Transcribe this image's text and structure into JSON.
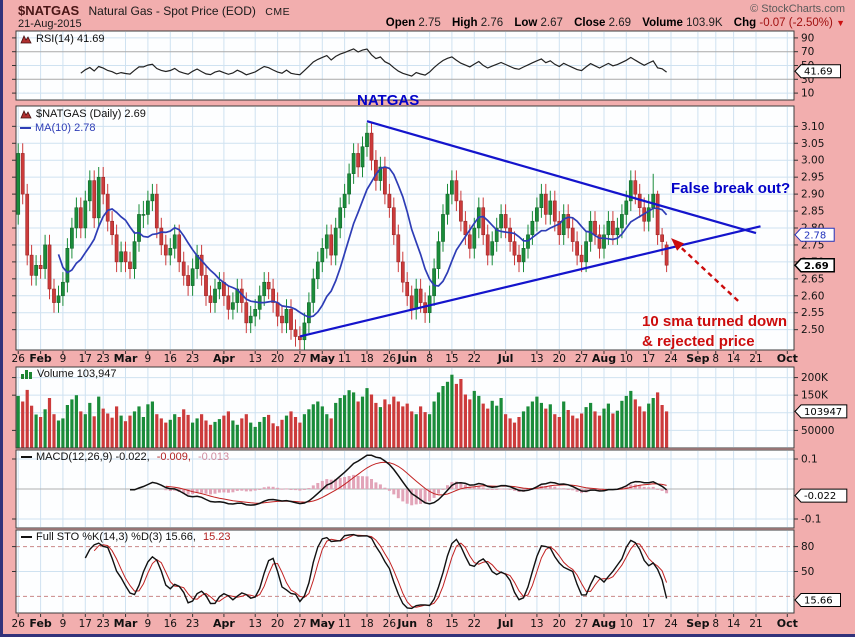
{
  "header": {
    "symbol": "$NATGAS",
    "title": "Natural Gas - Spot Price (EOD)",
    "exchange": "CME",
    "date": "21-Aug-2015",
    "copyright": "© StockCharts.com",
    "quote": {
      "open_label": "Open",
      "open": "2.75",
      "high_label": "High",
      "high": "2.76",
      "low_label": "Low",
      "low": "2.67",
      "close_label": "Close",
      "close": "2.69",
      "volume_label": "Volume",
      "volume": "103.9K",
      "chg_label": "Chg",
      "chg": "-0.07 (-2.50%)",
      "chg_direction_icon": "▼"
    }
  },
  "legends": {
    "rsi": "RSI(14) 41.69",
    "price": "$NATGAS (Daily) 2.69",
    "ma": "MA(10) 2.78",
    "volume": "Volume 103,947",
    "macd_name": "MACD(12,26,9) -0.022,",
    "macd_signal": "-0.009,",
    "macd_hist": "-0.013",
    "sto_name": "Full STO %K(14,3) %D(3) 15.66,",
    "sto_d": "15.23"
  },
  "annotations": {
    "natgas": "NATGAS",
    "false_breakout": "False break out?",
    "sma_note_line1": "10 sma turned down",
    "sma_note_line2": "& rejected price"
  },
  "axis_boxes": {
    "rsi": "41.69",
    "ma": "2.78",
    "close": "2.69",
    "volume": "103947",
    "macd": "-0.022",
    "sto": "15.66"
  },
  "colors": {
    "background_pink": "#F2AEAE",
    "candle_up": "#1A8C3A",
    "candle_down": "#CC3B3B",
    "ma_line": "#2E3DB6",
    "trendline_blue": "#1414CC",
    "annotation_red": "#CC0C0C",
    "grid_blue": "#CFE2F1"
  },
  "chart_data": [
    {
      "id": "price",
      "type": "candlestick",
      "title": "$NATGAS (Daily)",
      "last_close": 2.69,
      "ma_period": 10,
      "ma_last": 2.78,
      "ylim": [
        2.44,
        3.16
      ],
      "ytick_vals": [
        3.1,
        3.05,
        3.0,
        2.95,
        2.9,
        2.85,
        2.8,
        2.75,
        2.7,
        2.65,
        2.6,
        2.55,
        2.5
      ],
      "ytick_labels": [
        "3.10",
        "3.05",
        "3.00",
        "2.95",
        "2.90",
        "2.85",
        "2.80",
        "2.75",
        "2.70",
        "2.65",
        "2.60",
        "2.55",
        "2.50"
      ],
      "x_slots": 174,
      "x_ticks": [
        [
          "26",
          0
        ],
        [
          "Feb",
          5
        ],
        [
          "9",
          10
        ],
        [
          "17",
          15
        ],
        [
          "23",
          19
        ],
        [
          "Mar",
          24
        ],
        [
          "9",
          29
        ],
        [
          "16",
          34
        ],
        [
          "23",
          39
        ],
        [
          "Apr",
          46
        ],
        [
          "13",
          53
        ],
        [
          "20",
          58
        ],
        [
          "27",
          63
        ],
        [
          "May",
          68
        ],
        [
          "11",
          73
        ],
        [
          "18",
          78
        ],
        [
          "26",
          83
        ],
        [
          "Jun",
          87
        ],
        [
          "8",
          92
        ],
        [
          "15",
          97
        ],
        [
          "22",
          102
        ],
        [
          "Jul",
          109
        ],
        [
          "13",
          116
        ],
        [
          "20",
          121
        ],
        [
          "27",
          126
        ],
        [
          "Aug",
          131
        ],
        [
          "10",
          136
        ],
        [
          "17",
          141
        ],
        [
          "24",
          146
        ],
        [
          "Sep",
          152
        ],
        [
          "8",
          156
        ],
        [
          "14",
          160
        ],
        [
          "21",
          165
        ],
        [
          "Oct",
          172
        ]
      ],
      "trendlines": [
        {
          "x1": 63,
          "y1": 2.48,
          "x2": 166,
          "y2": 2.805
        },
        {
          "x1": 78,
          "y1": 3.115,
          "x2": 165,
          "y2": 2.785
        }
      ],
      "arrow": {
        "x1": 161,
        "y1": 2.585,
        "x2": 146,
        "y2": 2.77
      },
      "candles": [
        [
          2.84,
          3.05,
          2.81,
          3.02
        ],
        [
          3.02,
          3.05,
          2.87,
          2.9
        ],
        [
          2.9,
          2.93,
          2.69,
          2.72
        ],
        [
          2.72,
          2.75,
          2.63,
          2.66
        ],
        [
          2.66,
          2.72,
          2.63,
          2.69
        ],
        [
          2.69,
          2.72,
          2.65,
          2.68
        ],
        [
          2.68,
          2.78,
          2.65,
          2.75
        ],
        [
          2.75,
          2.78,
          2.59,
          2.62
        ],
        [
          2.62,
          2.65,
          2.55,
          2.58
        ],
        [
          2.58,
          2.63,
          2.55,
          2.6
        ],
        [
          2.6,
          2.67,
          2.57,
          2.64
        ],
        [
          2.64,
          2.77,
          2.61,
          2.74
        ],
        [
          2.74,
          2.83,
          2.71,
          2.8
        ],
        [
          2.8,
          2.89,
          2.77,
          2.86
        ],
        [
          2.86,
          2.89,
          2.77,
          2.8
        ],
        [
          2.8,
          2.91,
          2.77,
          2.88
        ],
        [
          2.88,
          2.97,
          2.85,
          2.94
        ],
        [
          2.94,
          2.97,
          2.8,
          2.83
        ],
        [
          2.83,
          2.98,
          2.8,
          2.95
        ],
        [
          2.95,
          2.98,
          2.87,
          2.9
        ],
        [
          2.9,
          2.93,
          2.79,
          2.82
        ],
        [
          2.82,
          2.85,
          2.75,
          2.78
        ],
        [
          2.78,
          2.81,
          2.67,
          2.7
        ],
        [
          2.7,
          2.76,
          2.67,
          2.73
        ],
        [
          2.73,
          2.76,
          2.67,
          2.7
        ],
        [
          2.7,
          2.73,
          2.65,
          2.68
        ],
        [
          2.68,
          2.79,
          2.65,
          2.76
        ],
        [
          2.76,
          2.87,
          2.73,
          2.84
        ],
        [
          2.84,
          2.88,
          2.8,
          2.84
        ],
        [
          2.84,
          2.91,
          2.81,
          2.88
        ],
        [
          2.88,
          2.93,
          2.85,
          2.9
        ],
        [
          2.9,
          2.93,
          2.77,
          2.8
        ],
        [
          2.8,
          2.83,
          2.72,
          2.75
        ],
        [
          2.75,
          2.78,
          2.69,
          2.72
        ],
        [
          2.72,
          2.77,
          2.69,
          2.74
        ],
        [
          2.74,
          2.81,
          2.71,
          2.78
        ],
        [
          2.78,
          2.81,
          2.67,
          2.7
        ],
        [
          2.7,
          2.73,
          2.63,
          2.66
        ],
        [
          2.66,
          2.69,
          2.6,
          2.63
        ],
        [
          2.63,
          2.71,
          2.6,
          2.68
        ],
        [
          2.68,
          2.75,
          2.65,
          2.72
        ],
        [
          2.72,
          2.75,
          2.63,
          2.66
        ],
        [
          2.66,
          2.69,
          2.57,
          2.6
        ],
        [
          2.6,
          2.63,
          2.55,
          2.58
        ],
        [
          2.58,
          2.65,
          2.55,
          2.62
        ],
        [
          2.62,
          2.67,
          2.59,
          2.64
        ],
        [
          2.64,
          2.67,
          2.57,
          2.6
        ],
        [
          2.6,
          2.63,
          2.53,
          2.56
        ],
        [
          2.56,
          2.61,
          2.53,
          2.58
        ],
        [
          2.58,
          2.65,
          2.55,
          2.62
        ],
        [
          2.62,
          2.65,
          2.55,
          2.58
        ],
        [
          2.58,
          2.61,
          2.49,
          2.52
        ],
        [
          2.52,
          2.57,
          2.49,
          2.54
        ],
        [
          2.54,
          2.59,
          2.51,
          2.56
        ],
        [
          2.56,
          2.63,
          2.53,
          2.6
        ],
        [
          2.6,
          2.67,
          2.57,
          2.64
        ],
        [
          2.64,
          2.67,
          2.59,
          2.62
        ],
        [
          2.62,
          2.65,
          2.55,
          2.58
        ],
        [
          2.58,
          2.61,
          2.51,
          2.54
        ],
        [
          2.54,
          2.57,
          2.49,
          2.52
        ],
        [
          2.52,
          2.59,
          2.49,
          2.56
        ],
        [
          2.56,
          2.59,
          2.47,
          2.5
        ],
        [
          2.5,
          2.53,
          2.45,
          2.48
        ],
        [
          2.48,
          2.51,
          2.44,
          2.47
        ],
        [
          2.47,
          2.55,
          2.44,
          2.52
        ],
        [
          2.52,
          2.61,
          2.49,
          2.58
        ],
        [
          2.58,
          2.68,
          2.55,
          2.65
        ],
        [
          2.65,
          2.73,
          2.62,
          2.7
        ],
        [
          2.7,
          2.77,
          2.67,
          2.74
        ],
        [
          2.74,
          2.81,
          2.71,
          2.78
        ],
        [
          2.78,
          2.81,
          2.69,
          2.72
        ],
        [
          2.72,
          2.83,
          2.69,
          2.8
        ],
        [
          2.8,
          2.89,
          2.77,
          2.86
        ],
        [
          2.86,
          2.93,
          2.83,
          2.9
        ],
        [
          2.9,
          2.99,
          2.87,
          2.96
        ],
        [
          2.96,
          3.05,
          2.93,
          3.02
        ],
        [
          3.02,
          3.05,
          2.95,
          2.98
        ],
        [
          2.98,
          3.07,
          2.95,
          3.04
        ],
        [
          3.04,
          3.11,
          3.01,
          3.08
        ],
        [
          3.08,
          3.11,
          2.97,
          3.0
        ],
        [
          3.0,
          3.03,
          2.91,
          2.94
        ],
        [
          2.94,
          3.01,
          2.91,
          2.98
        ],
        [
          2.98,
          3.01,
          2.87,
          2.9
        ],
        [
          2.9,
          2.93,
          2.83,
          2.86
        ],
        [
          2.86,
          2.89,
          2.75,
          2.78
        ],
        [
          2.78,
          2.81,
          2.67,
          2.7
        ],
        [
          2.7,
          2.73,
          2.61,
          2.64
        ],
        [
          2.64,
          2.67,
          2.57,
          2.6
        ],
        [
          2.6,
          2.63,
          2.53,
          2.56
        ],
        [
          2.56,
          2.65,
          2.53,
          2.62
        ],
        [
          2.62,
          2.65,
          2.55,
          2.58
        ],
        [
          2.58,
          2.61,
          2.52,
          2.55
        ],
        [
          2.55,
          2.63,
          2.52,
          2.6
        ],
        [
          2.6,
          2.71,
          2.57,
          2.68
        ],
        [
          2.68,
          2.79,
          2.65,
          2.76
        ],
        [
          2.76,
          2.87,
          2.73,
          2.84
        ],
        [
          2.84,
          2.93,
          2.81,
          2.9
        ],
        [
          2.9,
          2.97,
          2.87,
          2.94
        ],
        [
          2.94,
          2.97,
          2.85,
          2.88
        ],
        [
          2.88,
          2.91,
          2.79,
          2.82
        ],
        [
          2.82,
          2.85,
          2.75,
          2.78
        ],
        [
          2.78,
          2.81,
          2.71,
          2.74
        ],
        [
          2.74,
          2.83,
          2.71,
          2.8
        ],
        [
          2.8,
          2.89,
          2.77,
          2.86
        ],
        [
          2.86,
          2.89,
          2.75,
          2.78
        ],
        [
          2.78,
          2.81,
          2.69,
          2.72
        ],
        [
          2.72,
          2.79,
          2.69,
          2.76
        ],
        [
          2.76,
          2.83,
          2.73,
          2.8
        ],
        [
          2.8,
          2.87,
          2.77,
          2.84
        ],
        [
          2.84,
          2.87,
          2.77,
          2.8
        ],
        [
          2.8,
          2.83,
          2.73,
          2.76
        ],
        [
          2.76,
          2.79,
          2.69,
          2.72
        ],
        [
          2.72,
          2.75,
          2.67,
          2.7
        ],
        [
          2.7,
          2.77,
          2.67,
          2.74
        ],
        [
          2.74,
          2.81,
          2.71,
          2.78
        ],
        [
          2.78,
          2.85,
          2.75,
          2.82
        ],
        [
          2.82,
          2.89,
          2.79,
          2.86
        ],
        [
          2.86,
          2.93,
          2.83,
          2.9
        ],
        [
          2.9,
          2.93,
          2.81,
          2.84
        ],
        [
          2.84,
          2.91,
          2.81,
          2.88
        ],
        [
          2.88,
          2.91,
          2.79,
          2.82
        ],
        [
          2.82,
          2.85,
          2.75,
          2.78
        ],
        [
          2.78,
          2.87,
          2.75,
          2.84
        ],
        [
          2.84,
          2.87,
          2.77,
          2.8
        ],
        [
          2.8,
          2.83,
          2.73,
          2.76
        ],
        [
          2.76,
          2.79,
          2.69,
          2.72
        ],
        [
          2.72,
          2.75,
          2.67,
          2.7
        ],
        [
          2.7,
          2.79,
          2.67,
          2.76
        ],
        [
          2.76,
          2.85,
          2.73,
          2.82
        ],
        [
          2.82,
          2.85,
          2.75,
          2.78
        ],
        [
          2.78,
          2.81,
          2.71,
          2.74
        ],
        [
          2.74,
          2.81,
          2.71,
          2.78
        ],
        [
          2.78,
          2.85,
          2.75,
          2.82
        ],
        [
          2.82,
          2.85,
          2.75,
          2.78
        ],
        [
          2.78,
          2.83,
          2.75,
          2.8
        ],
        [
          2.8,
          2.87,
          2.77,
          2.84
        ],
        [
          2.84,
          2.91,
          2.81,
          2.88
        ],
        [
          2.88,
          2.97,
          2.85,
          2.94
        ],
        [
          2.94,
          2.97,
          2.87,
          2.9
        ],
        [
          2.9,
          2.93,
          2.83,
          2.86
        ],
        [
          2.86,
          2.89,
          2.79,
          2.82
        ],
        [
          2.82,
          2.9,
          2.79,
          2.86
        ],
        [
          2.86,
          2.96,
          2.83,
          2.9
        ],
        [
          2.9,
          2.91,
          2.75,
          2.78
        ],
        [
          2.78,
          2.8,
          2.72,
          2.76
        ],
        [
          2.75,
          2.76,
          2.67,
          2.69
        ]
      ]
    },
    {
      "id": "rsi",
      "type": "line",
      "name": "RSI(14)",
      "period": 14,
      "last": 41.69,
      "ylim": [
        0,
        100
      ],
      "ytick_vals": [
        90,
        70,
        50,
        30,
        10
      ],
      "ytick_labels": [
        "90",
        "70",
        "50",
        "30",
        "10"
      ],
      "band_levels": [
        70,
        30
      ]
    },
    {
      "id": "volume",
      "type": "bar",
      "name": "Volume",
      "last": 103947,
      "unit": "thousands",
      "ylim": [
        0,
        230
      ],
      "ytick_vals": [
        200,
        150,
        50
      ],
      "ytick_labels": [
        "200K",
        "150K",
        "50000"
      ],
      "grid_levels": [
        200,
        150,
        100,
        50
      ],
      "values": [
        148,
        132,
        165,
        120,
        95,
        88,
        110,
        142,
        96,
        78,
        84,
        122,
        138,
        150,
        104,
        96,
        128,
        90,
        146,
        112,
        98,
        86,
        118,
        92,
        76,
        92,
        104,
        118,
        88,
        124,
        132,
        96,
        84,
        72,
        80,
        96,
        88,
        110,
        94,
        72,
        84,
        96,
        78,
        66,
        74,
        82,
        92,
        104,
        78,
        66,
        84,
        96,
        72,
        60,
        74,
        88,
        94,
        70,
        62,
        80,
        92,
        104,
        88,
        72,
        96,
        110,
        124,
        132,
        118,
        96,
        84,
        128,
        142,
        150,
        164,
        158,
        132,
        146,
        170,
        152,
        128,
        116,
        138,
        124,
        146,
        132,
        118,
        126,
        104,
        96,
        118,
        102,
        96,
        132,
        158,
        176,
        188,
        208,
        182,
        196,
        152,
        138,
        162,
        148,
        126,
        112,
        134,
        120,
        142,
        96,
        84,
        72,
        88,
        104,
        118,
        132,
        146,
        128,
        112,
        124,
        96,
        88,
        132,
        108,
        92,
        84,
        98,
        116,
        128,
        104,
        92,
        112,
        126,
        98,
        106,
        134,
        148,
        162,
        138,
        118,
        104,
        126,
        142,
        158,
        122,
        103.9
      ]
    },
    {
      "id": "macd",
      "type": "line",
      "name": "MACD(12,26,9)",
      "last": [
        -0.022,
        -0.009,
        -0.013
      ],
      "ylim": [
        -0.13,
        0.13
      ],
      "ytick_vals": [
        0.1,
        -0.1
      ],
      "ytick_labels": [
        "0.1",
        "-0.1"
      ],
      "grid_levels": [
        0.1,
        0,
        -0.1
      ]
    },
    {
      "id": "sto",
      "type": "line",
      "name": "Full STO %K(14,3) %D(3)",
      "last": [
        15.66,
        15.23
      ],
      "ylim": [
        0,
        100
      ],
      "ytick_vals": [
        80,
        50
      ],
      "ytick_labels": [
        "80",
        "50"
      ],
      "grid_levels": [
        80,
        50,
        20
      ]
    }
  ]
}
